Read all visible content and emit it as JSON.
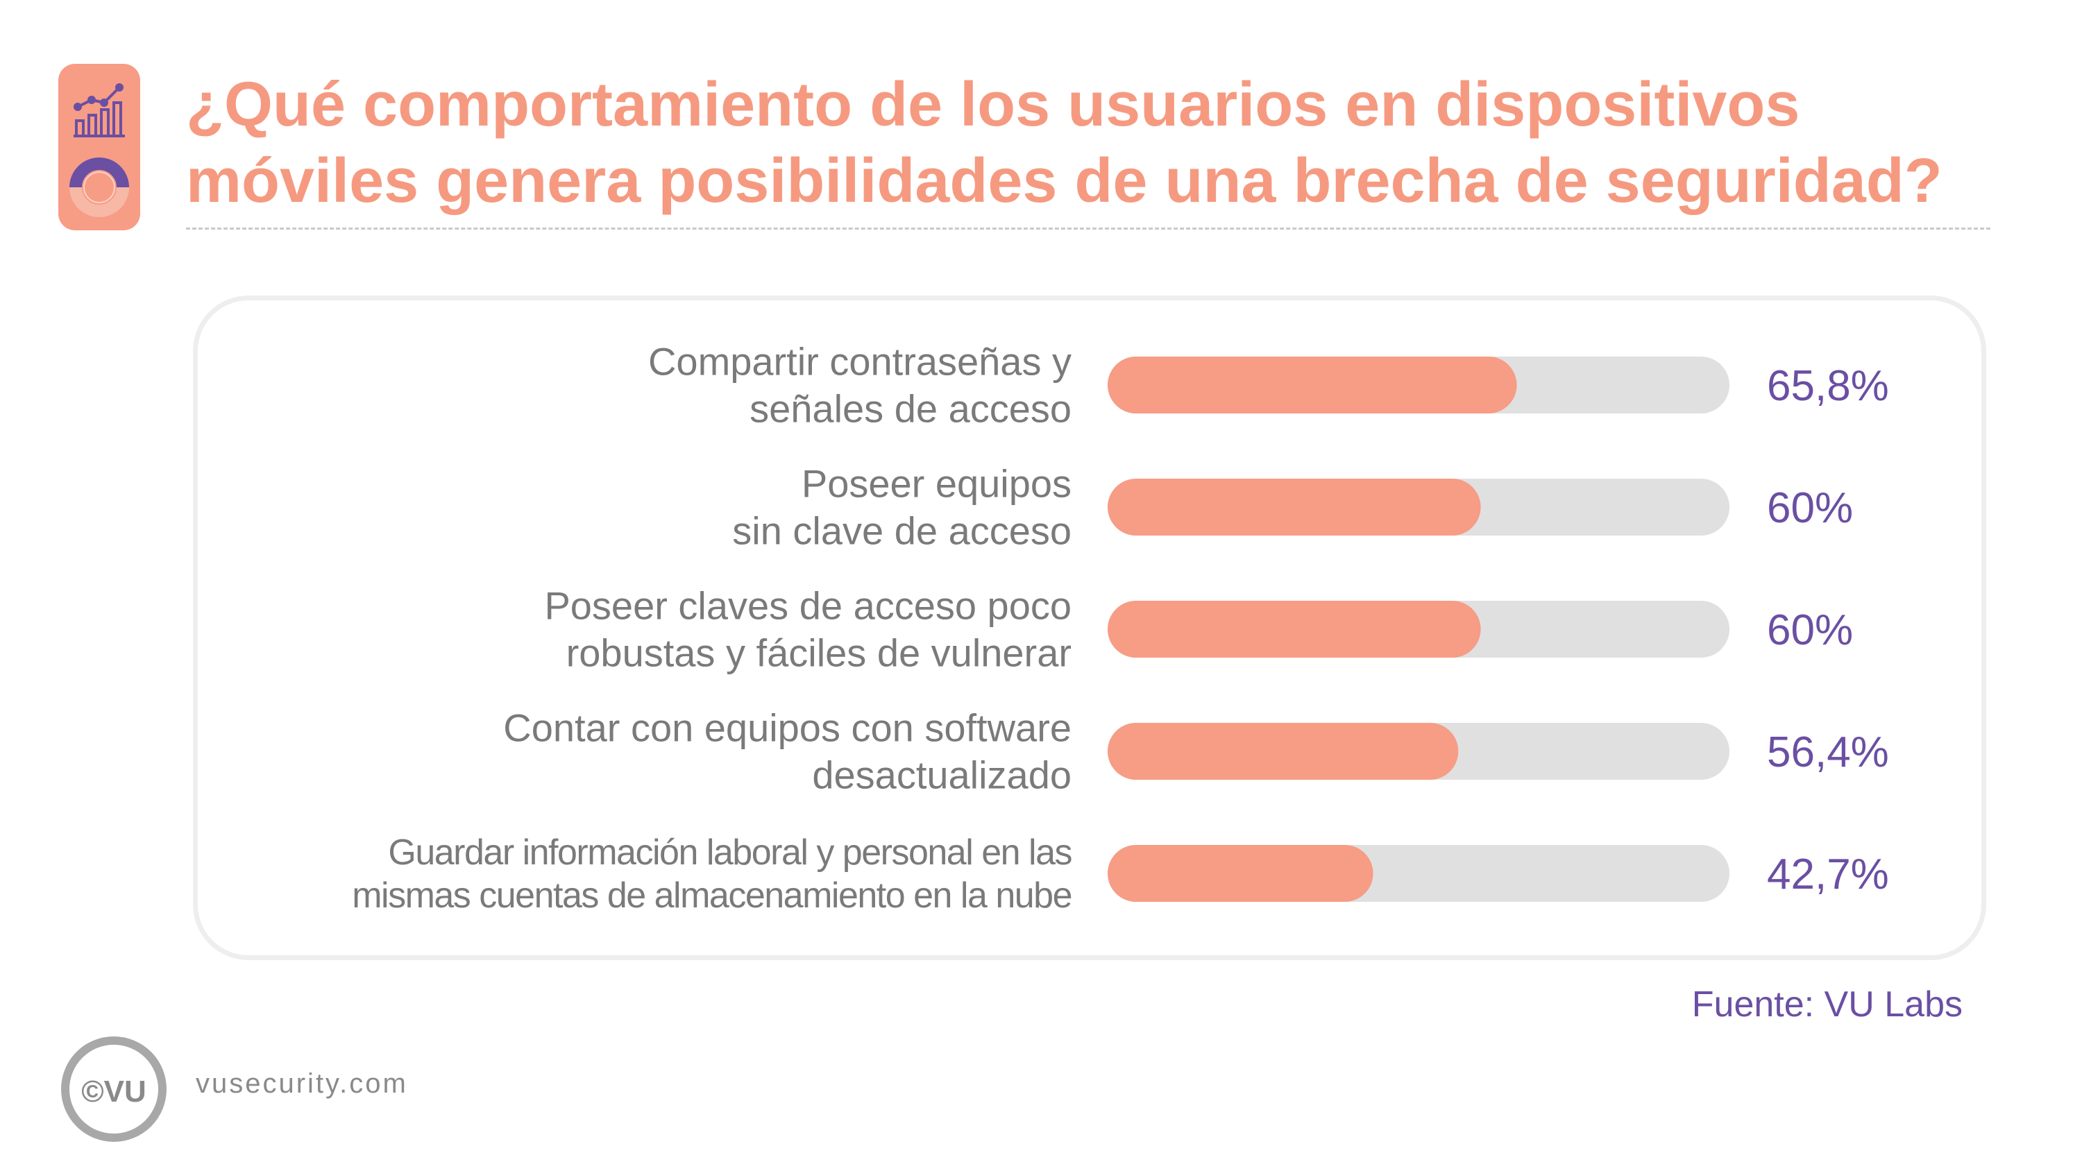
{
  "header": {
    "title_line1": "¿Qué comportamiento de los usuarios en dispositivos",
    "title_line2": "móviles genera posibilidades de una brecha de seguridad?",
    "icon_top": "trend-chart-icon",
    "icon_bottom": "donut-chart-icon"
  },
  "chart_data": {
    "type": "bar",
    "orientation": "horizontal",
    "categories": [
      [
        "Compartir contraseñas y",
        "señales de acceso"
      ],
      [
        "Poseer equipos",
        "sin clave de acceso"
      ],
      [
        "Poseer claves de acceso poco",
        "robustas y fáciles de vulnerar"
      ],
      [
        "Contar con equipos con software",
        "desactualizado"
      ],
      [
        "Guardar información laboral y personal en las",
        "mismas cuentas de almacenamiento en la nube"
      ]
    ],
    "values": [
      65.8,
      60,
      60,
      56.4,
      42.7
    ],
    "value_labels": [
      "65,8%",
      "60%",
      "60%",
      "56,4%",
      "42,7%"
    ],
    "xlim": [
      0,
      100
    ],
    "grid": false,
    "legend": "none"
  },
  "colors": {
    "accent": "#f79c85",
    "track": "#e0e0e0",
    "label": "#7a7a7a",
    "value": "#6a4fa3",
    "title": "#f59a80"
  },
  "footer": {
    "source": "Fuente: VU Labs",
    "site": "vusecurity.com",
    "logo_text": "©VU"
  }
}
